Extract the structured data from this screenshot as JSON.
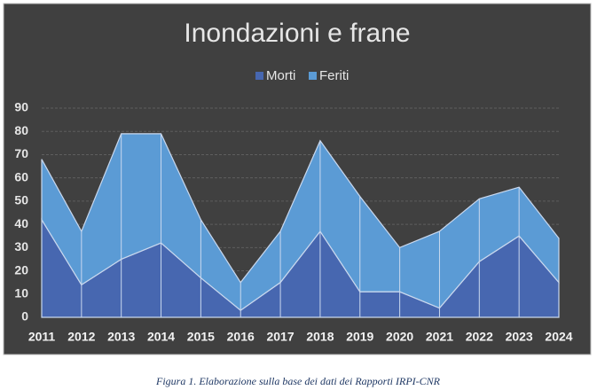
{
  "chart_data": {
    "type": "stacked_area",
    "title": "Inondazioni e frane",
    "categories": [
      "2011",
      "2012",
      "2013",
      "2014",
      "2015",
      "2016",
      "2017",
      "2018",
      "2019",
      "2020",
      "2021",
      "2022",
      "2023",
      "2024"
    ],
    "series": [
      {
        "name": "Morti",
        "color": "#4767b0",
        "values": [
          42,
          14,
          25,
          32,
          17,
          3,
          15,
          37,
          11,
          11,
          4,
          24,
          35,
          15
        ]
      },
      {
        "name": "Feriti",
        "color": "#5b9bd5",
        "values": [
          26,
          23,
          54,
          47,
          25,
          12,
          22,
          39,
          41,
          19,
          33,
          27,
          21,
          19
        ]
      }
    ],
    "ylim": [
      0,
      90
    ],
    "yticks": [
      0,
      10,
      20,
      30,
      40,
      50,
      60,
      70,
      80,
      90
    ],
    "grid": true,
    "legend": "top",
    "caption": "Figura 1. Elaborazione sulla base dei dati dei Rapporti IRPI-CNR"
  }
}
